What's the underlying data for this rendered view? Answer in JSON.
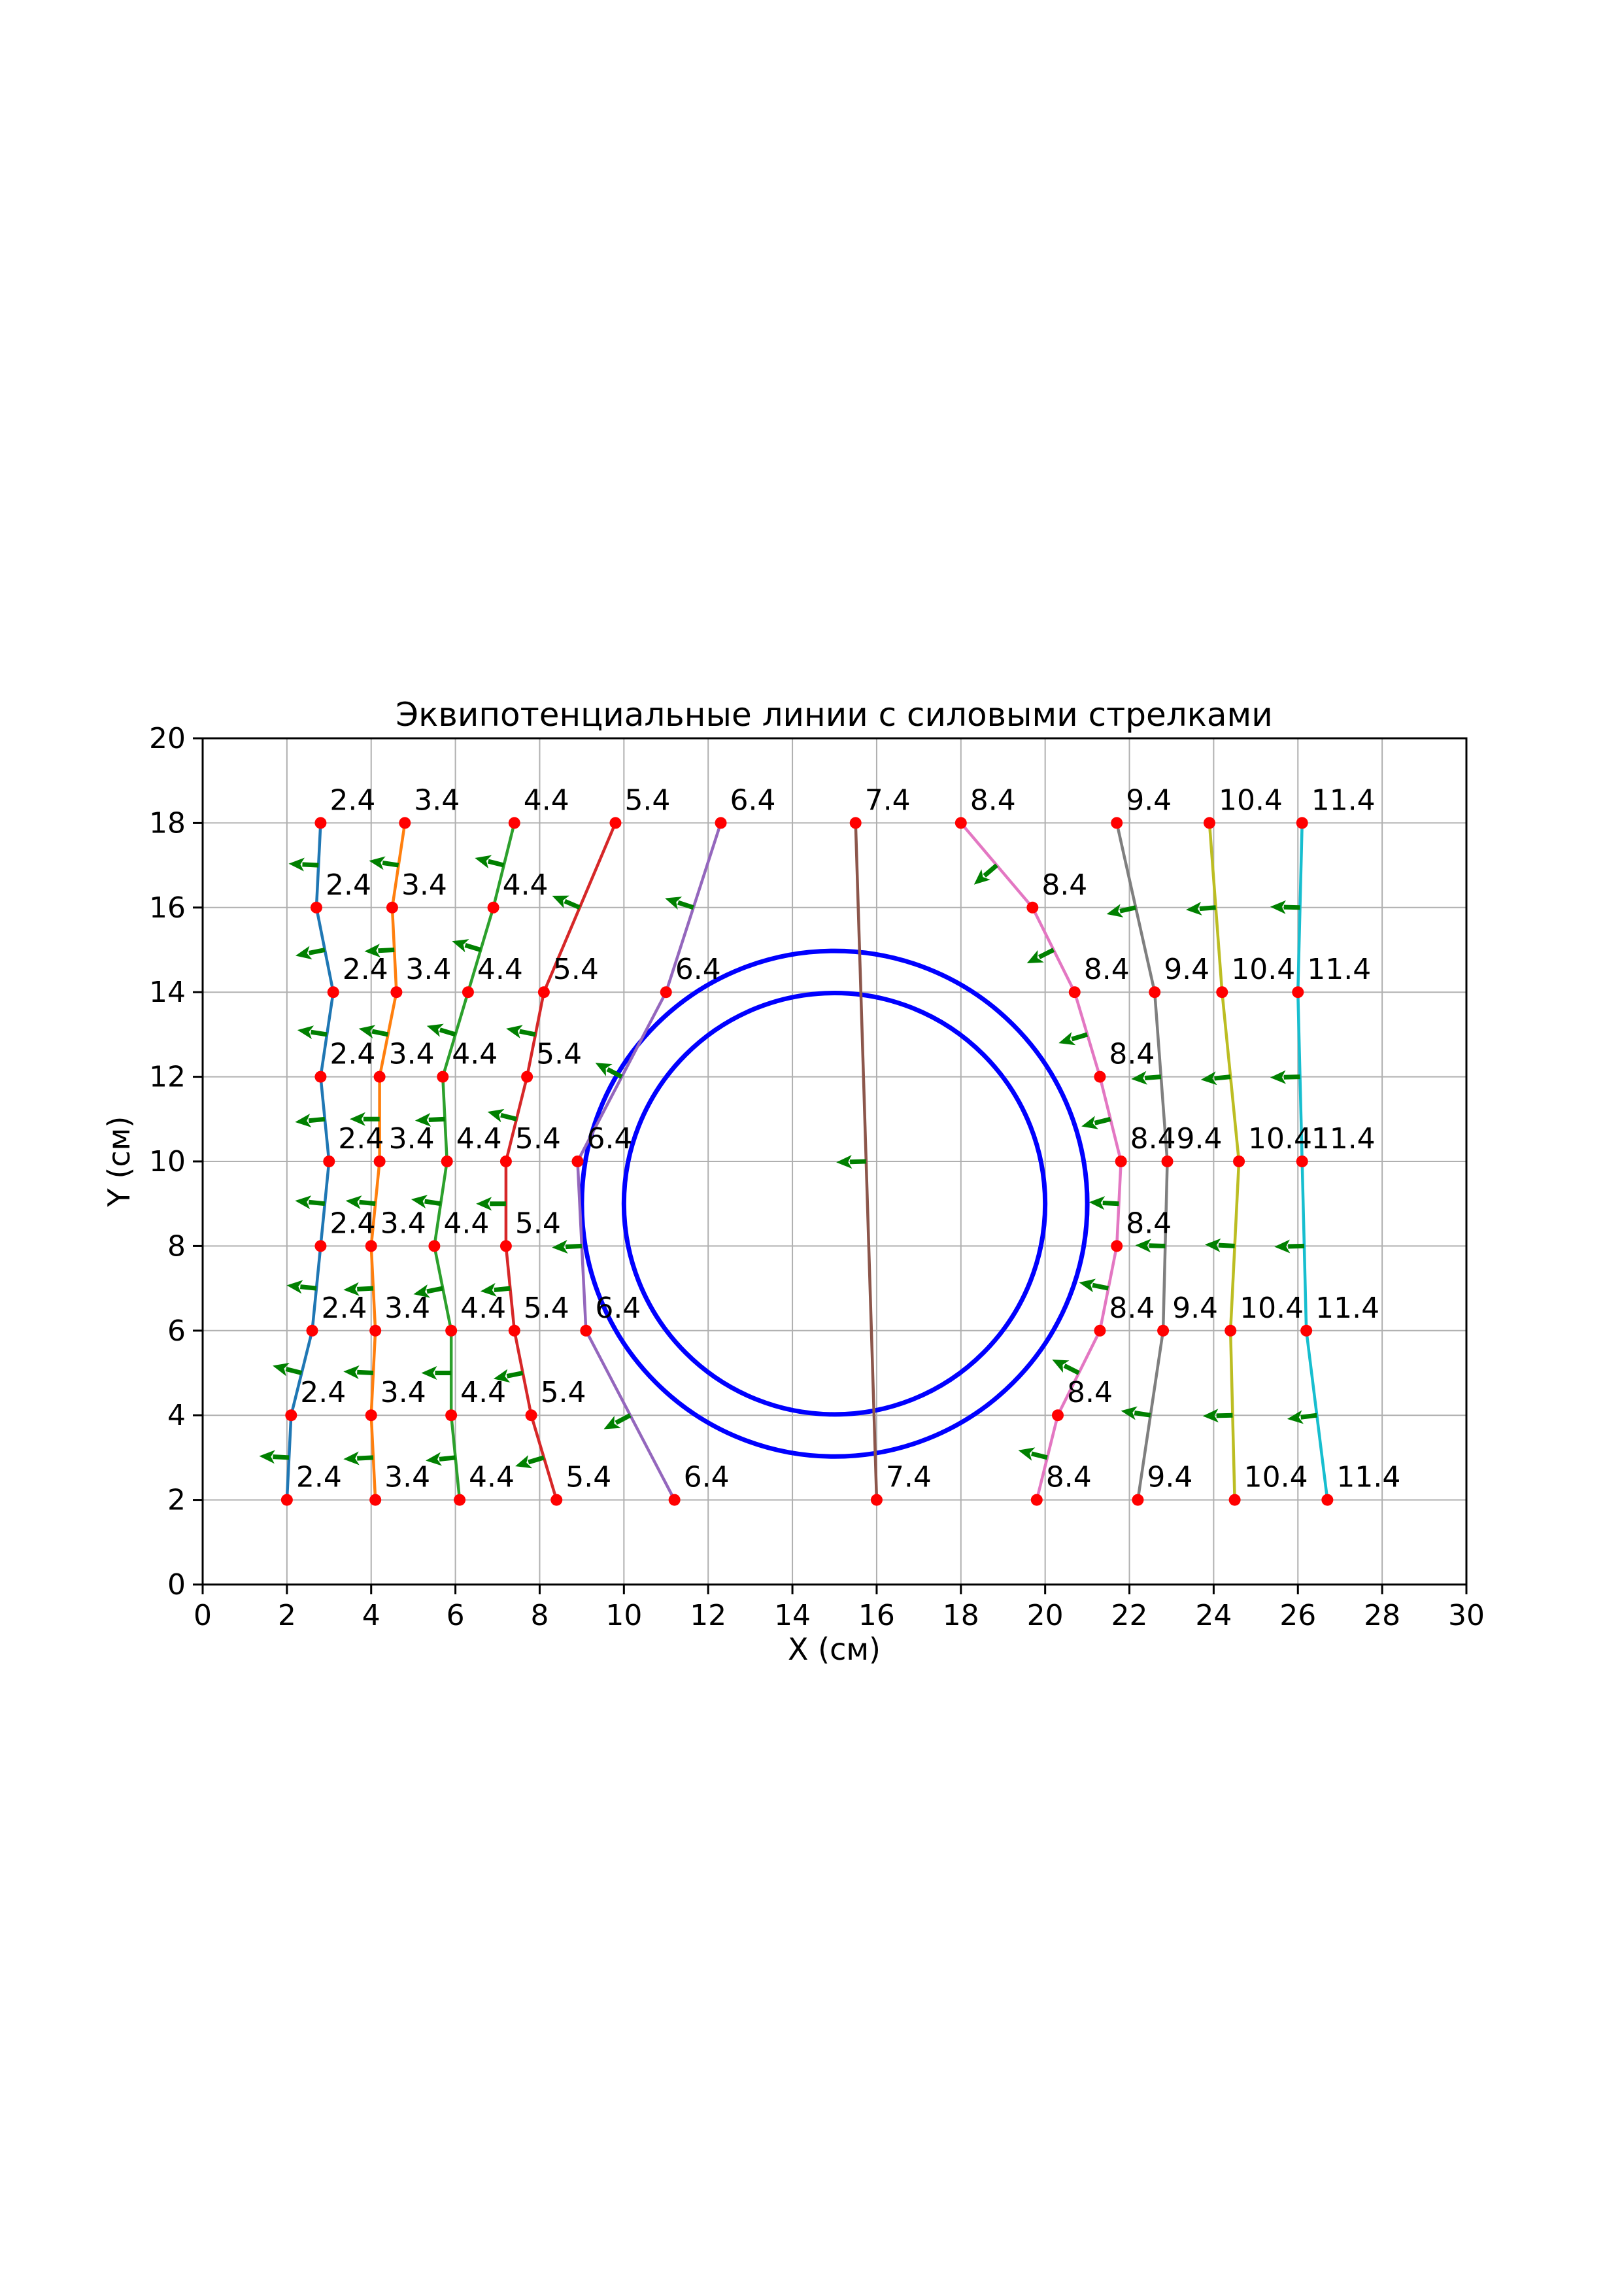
{
  "chart_data": {
    "type": "line",
    "title": "Эквипотенциальные линии с силовыми стрелками",
    "xlabel": "X (см)",
    "ylabel": "Y (см)",
    "xlim": [
      0,
      30
    ],
    "ylim": [
      0,
      20
    ],
    "x_ticks": [
      0,
      2,
      4,
      6,
      8,
      10,
      12,
      14,
      16,
      18,
      20,
      22,
      24,
      26,
      28,
      30
    ],
    "y_ticks": [
      0,
      2,
      4,
      6,
      8,
      10,
      12,
      14,
      16,
      18,
      20
    ],
    "grid": true,
    "legend": "none",
    "style": {
      "background": "#ffffff",
      "grid_color": "#b0b0b0",
      "spine_color": "#000000",
      "point_color": "#ff0000",
      "arrow_color": "#008000",
      "circle_color": "#0000ff"
    },
    "circles": [
      {
        "cx": 15,
        "cy": 9,
        "r": 5
      },
      {
        "cx": 15,
        "cy": 9,
        "r": 6
      }
    ],
    "series": [
      {
        "name": "2.4",
        "color": "#1f77b4",
        "points": [
          [
            2.8,
            18
          ],
          [
            2.7,
            16
          ],
          [
            3.1,
            14
          ],
          [
            2.8,
            12
          ],
          [
            3.0,
            10
          ],
          [
            2.8,
            8
          ],
          [
            2.6,
            6
          ],
          [
            2.1,
            4
          ],
          [
            2.0,
            2
          ]
        ]
      },
      {
        "name": "3.4",
        "color": "#ff7f0e",
        "points": [
          [
            4.8,
            18
          ],
          [
            4.5,
            16
          ],
          [
            4.6,
            14
          ],
          [
            4.2,
            12
          ],
          [
            4.2,
            10
          ],
          [
            4.0,
            8
          ],
          [
            4.1,
            6
          ],
          [
            4.0,
            4
          ],
          [
            4.1,
            2
          ]
        ]
      },
      {
        "name": "4.4",
        "color": "#2ca02c",
        "points": [
          [
            7.4,
            18
          ],
          [
            6.9,
            16
          ],
          [
            6.3,
            14
          ],
          [
            5.7,
            12
          ],
          [
            5.8,
            10
          ],
          [
            5.5,
            8
          ],
          [
            5.9,
            6
          ],
          [
            5.9,
            4
          ],
          [
            6.1,
            2
          ]
        ]
      },
      {
        "name": "5.4",
        "color": "#d62728",
        "points": [
          [
            9.8,
            18
          ],
          [
            8.1,
            14
          ],
          [
            7.7,
            12
          ],
          [
            7.2,
            10
          ],
          [
            7.2,
            8
          ],
          [
            7.4,
            6
          ],
          [
            7.8,
            4
          ],
          [
            8.4,
            2
          ]
        ]
      },
      {
        "name": "6.4",
        "color": "#9467bd",
        "points": [
          [
            12.3,
            18
          ],
          [
            11.0,
            14
          ],
          [
            8.9,
            10
          ],
          [
            9.1,
            6
          ],
          [
            11.2,
            2
          ]
        ]
      },
      {
        "name": "7.4",
        "color": "#8c564b",
        "points": [
          [
            15.5,
            18
          ],
          [
            16.0,
            2
          ]
        ]
      },
      {
        "name": "8.4",
        "color": "#e377c2",
        "points": [
          [
            18.0,
            18
          ],
          [
            19.7,
            16
          ],
          [
            20.7,
            14
          ],
          [
            21.3,
            12
          ],
          [
            21.8,
            10
          ],
          [
            21.7,
            8
          ],
          [
            21.3,
            6
          ],
          [
            20.3,
            4
          ],
          [
            19.8,
            2
          ]
        ]
      },
      {
        "name": "9.4",
        "color": "#7f7f7f",
        "points": [
          [
            21.7,
            18
          ],
          [
            22.6,
            14
          ],
          [
            22.9,
            10
          ],
          [
            22.8,
            6
          ],
          [
            22.2,
            2
          ]
        ]
      },
      {
        "name": "10.4",
        "color": "#bcbd22",
        "points": [
          [
            23.9,
            18
          ],
          [
            24.2,
            14
          ],
          [
            24.6,
            10
          ],
          [
            24.4,
            6
          ],
          [
            24.5,
            2
          ]
        ]
      },
      {
        "name": "11.4",
        "color": "#17becf",
        "points": [
          [
            26.1,
            18
          ],
          [
            26.0,
            14
          ],
          [
            26.1,
            10
          ],
          [
            26.2,
            6
          ],
          [
            26.7,
            2
          ]
        ]
      }
    ],
    "point_labels": "every measured point is annotated with its series potential value, offset up-right",
    "arrows": {
      "color": "#008000",
      "placement": "midpoint of every polyline segment",
      "direction": "perpendicular to segment, pointing toward negative x",
      "length_units": 0.71
    }
  }
}
